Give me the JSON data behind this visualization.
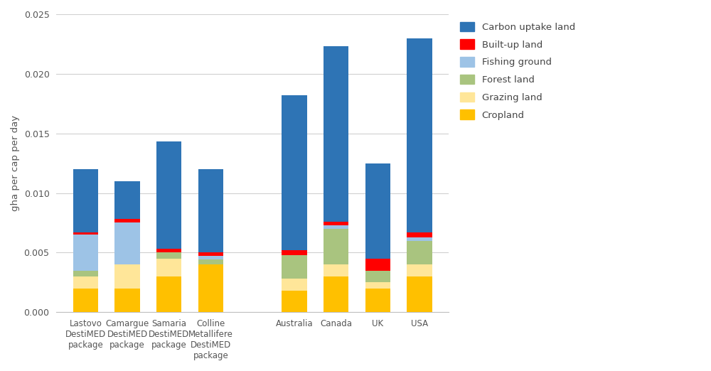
{
  "categories": [
    "Lastovo\nDestiMED\npackage",
    "Camargue\nDestiMED\npackage",
    "Samaria\nDestiMED\npackage",
    "Colline\nMetallifere\nDestiMED\npackage",
    "Australia",
    "Canada",
    "UK",
    "USA"
  ],
  "x_positions": [
    0,
    1,
    2,
    3,
    5,
    6,
    7,
    8
  ],
  "series": {
    "Cropland": {
      "color": "#FFC000",
      "values": [
        0.002,
        0.002,
        0.003,
        0.004,
        0.0018,
        0.003,
        0.002,
        0.003
      ]
    },
    "Grazing land": {
      "color": "#FFE699",
      "values": [
        0.001,
        0.002,
        0.0015,
        0.0,
        0.001,
        0.001,
        0.0005,
        0.001
      ]
    },
    "Forest land": {
      "color": "#A9C47F",
      "values": [
        0.0005,
        0.0,
        0.0005,
        0.0004,
        0.002,
        0.003,
        0.001,
        0.002
      ]
    },
    "Fishing ground": {
      "color": "#9DC3E6",
      "values": [
        0.003,
        0.0035,
        0.0,
        0.0003,
        0.0,
        0.0003,
        0.0,
        0.0003
      ]
    },
    "Built-up land": {
      "color": "#FF0000",
      "values": [
        0.0002,
        0.0003,
        0.0003,
        0.0003,
        0.0004,
        0.0003,
        0.001,
        0.0004
      ]
    },
    "Carbon uptake land": {
      "color": "#2E74B5",
      "values": [
        0.0053,
        0.0032,
        0.009,
        0.007,
        0.013,
        0.0147,
        0.008,
        0.0163
      ]
    }
  },
  "ylabel": "gha per cap per day",
  "ylim": [
    0,
    0.025
  ],
  "yticks": [
    0.0,
    0.005,
    0.01,
    0.015,
    0.02,
    0.025
  ],
  "figsize": [
    10.0,
    5.22
  ],
  "dpi": 100,
  "bar_width": 0.6,
  "background_color": "#ffffff",
  "legend_order": [
    "Carbon uptake land",
    "Built-up land",
    "Fishing ground",
    "Forest land",
    "Grazing land",
    "Cropland"
  ]
}
